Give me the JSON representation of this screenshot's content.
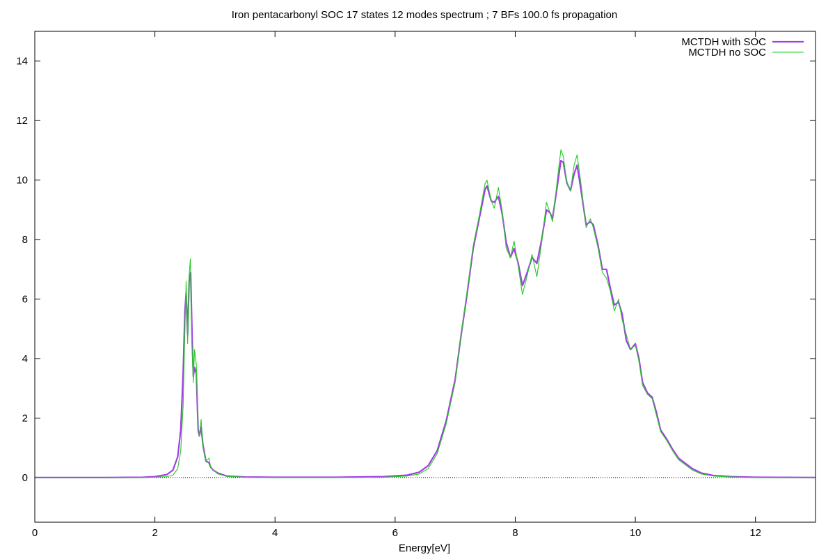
{
  "chart_data": {
    "type": "line",
    "title": "Iron pentacarbonyl SOC 17 states 12 modes spectrum ; 7 BFs 100.0 fs propagation",
    "xlabel": "Energy[eV]",
    "ylabel": "",
    "xlim": [
      0,
      13
    ],
    "ylim": [
      -1.5,
      15
    ],
    "xticks": [
      0,
      2,
      4,
      6,
      8,
      10,
      12
    ],
    "yticks": [
      0,
      2,
      4,
      6,
      8,
      10,
      12,
      14
    ],
    "grid": false,
    "legend_position": "top-right",
    "zero_line": true,
    "series": [
      {
        "name": "MCTDH with SOC",
        "color": "#a040e0",
        "points": [
          [
            0,
            0.0
          ],
          [
            1.2,
            0.0
          ],
          [
            1.8,
            0.01
          ],
          [
            2.0,
            0.03
          ],
          [
            2.2,
            0.1
          ],
          [
            2.3,
            0.25
          ],
          [
            2.38,
            0.7
          ],
          [
            2.43,
            1.6
          ],
          [
            2.47,
            3.5
          ],
          [
            2.5,
            5.6
          ],
          [
            2.52,
            6.2
          ],
          [
            2.545,
            4.8
          ],
          [
            2.57,
            6.6
          ],
          [
            2.595,
            6.9
          ],
          [
            2.62,
            4.7
          ],
          [
            2.64,
            3.4
          ],
          [
            2.66,
            3.7
          ],
          [
            2.69,
            3.5
          ],
          [
            2.72,
            1.6
          ],
          [
            2.74,
            1.4
          ],
          [
            2.77,
            1.7
          ],
          [
            2.8,
            1.1
          ],
          [
            2.85,
            0.55
          ],
          [
            2.9,
            0.5
          ],
          [
            2.93,
            0.35
          ],
          [
            2.97,
            0.25
          ],
          [
            3.05,
            0.15
          ],
          [
            3.2,
            0.05
          ],
          [
            3.5,
            0.02
          ],
          [
            4.0,
            0.01
          ],
          [
            5.0,
            0.01
          ],
          [
            5.8,
            0.03
          ],
          [
            6.2,
            0.08
          ],
          [
            6.4,
            0.18
          ],
          [
            6.55,
            0.4
          ],
          [
            6.7,
            0.9
          ],
          [
            6.85,
            1.9
          ],
          [
            7.0,
            3.3
          ],
          [
            7.1,
            4.8
          ],
          [
            7.2,
            6.2
          ],
          [
            7.3,
            7.7
          ],
          [
            7.4,
            8.7
          ],
          [
            7.5,
            9.7
          ],
          [
            7.53,
            9.8
          ],
          [
            7.6,
            9.3
          ],
          [
            7.65,
            9.25
          ],
          [
            7.72,
            9.45
          ],
          [
            7.78,
            8.9
          ],
          [
            7.85,
            7.9
          ],
          [
            7.92,
            7.4
          ],
          [
            7.98,
            7.7
          ],
          [
            8.05,
            7.2
          ],
          [
            8.12,
            6.45
          ],
          [
            8.2,
            6.9
          ],
          [
            8.28,
            7.4
          ],
          [
            8.36,
            7.2
          ],
          [
            8.44,
            8.0
          ],
          [
            8.52,
            9.0
          ],
          [
            8.58,
            8.9
          ],
          [
            8.62,
            8.7
          ],
          [
            8.7,
            9.8
          ],
          [
            8.76,
            10.65
          ],
          [
            8.8,
            10.6
          ],
          [
            8.86,
            9.9
          ],
          [
            8.92,
            9.65
          ],
          [
            8.98,
            10.2
          ],
          [
            9.03,
            10.5
          ],
          [
            9.1,
            9.6
          ],
          [
            9.18,
            8.5
          ],
          [
            9.25,
            8.6
          ],
          [
            9.3,
            8.5
          ],
          [
            9.38,
            7.8
          ],
          [
            9.45,
            7.0
          ],
          [
            9.52,
            7.0
          ],
          [
            9.58,
            6.4
          ],
          [
            9.65,
            5.8
          ],
          [
            9.72,
            5.9
          ],
          [
            9.78,
            5.5
          ],
          [
            9.85,
            4.6
          ],
          [
            9.92,
            4.3
          ],
          [
            10.0,
            4.5
          ],
          [
            10.06,
            4.0
          ],
          [
            10.12,
            3.2
          ],
          [
            10.2,
            2.85
          ],
          [
            10.28,
            2.7
          ],
          [
            10.35,
            2.2
          ],
          [
            10.42,
            1.6
          ],
          [
            10.52,
            1.3
          ],
          [
            10.62,
            0.95
          ],
          [
            10.72,
            0.65
          ],
          [
            10.85,
            0.45
          ],
          [
            10.95,
            0.3
          ],
          [
            11.1,
            0.15
          ],
          [
            11.3,
            0.07
          ],
          [
            11.6,
            0.03
          ],
          [
            12.0,
            0.01
          ],
          [
            13.0,
            0.0
          ]
        ]
      },
      {
        "name": "MCTDH no SOC",
        "color": "#22cc22",
        "points": [
          [
            0,
            0.0
          ],
          [
            1.2,
            0.0
          ],
          [
            1.8,
            0.0
          ],
          [
            2.0,
            0.01
          ],
          [
            2.2,
            0.03
          ],
          [
            2.3,
            0.08
          ],
          [
            2.38,
            0.3
          ],
          [
            2.43,
            0.9
          ],
          [
            2.47,
            2.4
          ],
          [
            2.5,
            5.0
          ],
          [
            2.52,
            6.6
          ],
          [
            2.545,
            4.5
          ],
          [
            2.57,
            6.8
          ],
          [
            2.59,
            7.35
          ],
          [
            2.615,
            4.5
          ],
          [
            2.64,
            3.2
          ],
          [
            2.66,
            4.3
          ],
          [
            2.69,
            3.8
          ],
          [
            2.72,
            1.5
          ],
          [
            2.74,
            1.4
          ],
          [
            2.77,
            1.95
          ],
          [
            2.8,
            1.0
          ],
          [
            2.85,
            0.55
          ],
          [
            2.9,
            0.65
          ],
          [
            2.93,
            0.35
          ],
          [
            2.97,
            0.25
          ],
          [
            3.05,
            0.12
          ],
          [
            3.2,
            0.04
          ],
          [
            3.5,
            0.01
          ],
          [
            4.0,
            0.0
          ],
          [
            5.0,
            0.0
          ],
          [
            5.8,
            0.01
          ],
          [
            6.2,
            0.05
          ],
          [
            6.4,
            0.12
          ],
          [
            6.55,
            0.3
          ],
          [
            6.7,
            0.8
          ],
          [
            6.85,
            1.8
          ],
          [
            7.0,
            3.2
          ],
          [
            7.1,
            4.8
          ],
          [
            7.2,
            6.3
          ],
          [
            7.3,
            7.8
          ],
          [
            7.4,
            8.8
          ],
          [
            7.5,
            9.9
          ],
          [
            7.53,
            10.0
          ],
          [
            7.6,
            9.3
          ],
          [
            7.65,
            9.05
          ],
          [
            7.72,
            9.75
          ],
          [
            7.78,
            9.0
          ],
          [
            7.85,
            7.7
          ],
          [
            7.92,
            7.4
          ],
          [
            7.98,
            7.95
          ],
          [
            8.05,
            7.1
          ],
          [
            8.12,
            6.15
          ],
          [
            8.2,
            6.8
          ],
          [
            8.28,
            7.5
          ],
          [
            8.36,
            6.75
          ],
          [
            8.44,
            7.9
          ],
          [
            8.52,
            9.25
          ],
          [
            8.58,
            8.9
          ],
          [
            8.62,
            8.6
          ],
          [
            8.7,
            10.0
          ],
          [
            8.76,
            11.02
          ],
          [
            8.8,
            10.8
          ],
          [
            8.86,
            9.9
          ],
          [
            8.92,
            9.65
          ],
          [
            8.98,
            10.5
          ],
          [
            9.03,
            10.85
          ],
          [
            9.1,
            9.8
          ],
          [
            9.18,
            8.4
          ],
          [
            9.25,
            8.7
          ],
          [
            9.3,
            8.4
          ],
          [
            9.38,
            7.7
          ],
          [
            9.45,
            6.9
          ],
          [
            9.52,
            6.7
          ],
          [
            9.58,
            6.3
          ],
          [
            9.65,
            5.6
          ],
          [
            9.72,
            6.0
          ],
          [
            9.78,
            5.3
          ],
          [
            9.85,
            4.8
          ],
          [
            9.92,
            4.3
          ],
          [
            10.0,
            4.45
          ],
          [
            10.06,
            3.9
          ],
          [
            10.12,
            3.1
          ],
          [
            10.2,
            2.8
          ],
          [
            10.28,
            2.65
          ],
          [
            10.35,
            2.1
          ],
          [
            10.42,
            1.55
          ],
          [
            10.52,
            1.25
          ],
          [
            10.62,
            0.9
          ],
          [
            10.72,
            0.6
          ],
          [
            10.85,
            0.4
          ],
          [
            10.95,
            0.25
          ],
          [
            11.1,
            0.12
          ],
          [
            11.3,
            0.05
          ],
          [
            11.6,
            0.02
          ],
          [
            12.0,
            0.0
          ],
          [
            13.0,
            0.0
          ]
        ]
      }
    ]
  }
}
